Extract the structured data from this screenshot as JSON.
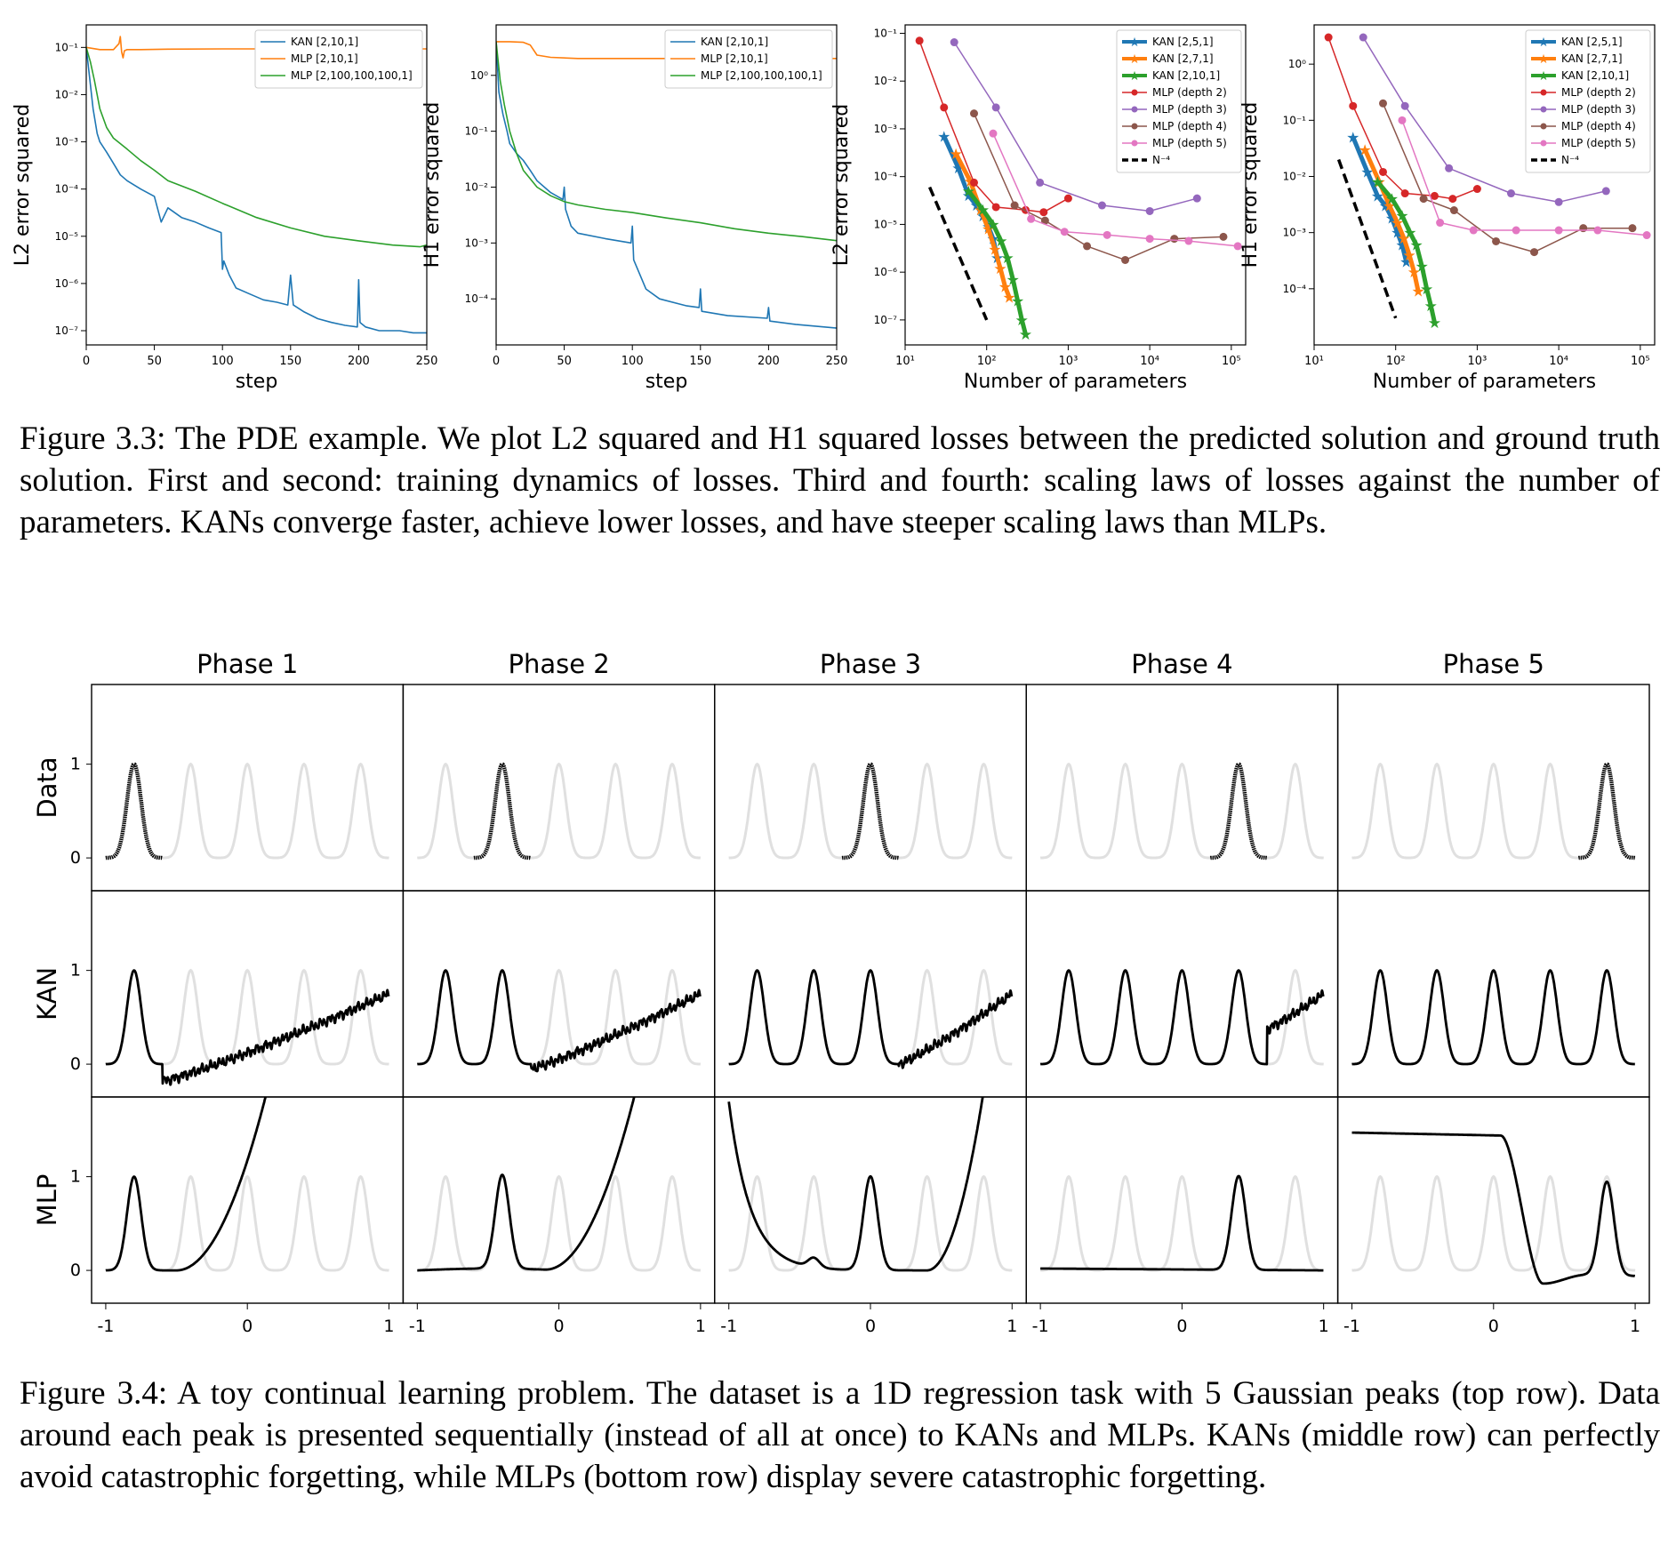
{
  "figure33": {
    "caption": "Figure 3.3: The PDE example. We plot L2 squared and H1 squared losses between the predicted solution and ground truth solution. First and second: training dynamics of losses. Third and fourth: scaling laws of losses against the number of parameters. KANs converge faster, achieve lower losses, and have steeper scaling laws than MLPs."
  },
  "figure34": {
    "caption": "Figure 3.4: A toy continual learning problem. The dataset is a 1D regression task with 5 Gaussian peaks (top row). Data around each peak is presented sequentially (instead of all at once) to KANs and MLPs. KANs (middle row) can perfectly avoid catastrophic forgetting, while MLPs (bottom row) display severe catastrophic forgetting."
  },
  "colors": {
    "blue": "#1f77b4",
    "orange": "#ff7f0e",
    "green": "#2ca02c",
    "red": "#d62728",
    "purple": "#9467bd",
    "brown": "#8c564b",
    "pink": "#e377c2",
    "grey": "#e0e0e0"
  },
  "chart_data": [
    {
      "type": "line",
      "xlabel": "step",
      "ylabel": "L2 error squared",
      "xlim": [
        0,
        250
      ],
      "xticks": [
        0,
        50,
        100,
        150,
        200,
        250
      ],
      "yscale": "log",
      "ylim": [
        5e-08,
        0.3
      ],
      "yticks": [
        {
          "v": 1e-07,
          "label": "10⁻⁷"
        },
        {
          "v": 1e-06,
          "label": "10⁻⁶"
        },
        {
          "v": 1e-05,
          "label": "10⁻⁵"
        },
        {
          "v": 0.0001,
          "label": "10⁻⁴"
        },
        {
          "v": 0.001,
          "label": "10⁻³"
        },
        {
          "v": 0.01,
          "label": "10⁻²"
        },
        {
          "v": 0.1,
          "label": "10⁻¹"
        }
      ],
      "legend_position": "top-right",
      "series": [
        {
          "name": "KAN [2,10,1]",
          "color": "blue",
          "x": [
            0,
            2,
            5,
            8,
            10,
            15,
            20,
            25,
            30,
            40,
            50,
            55,
            60,
            70,
            80,
            90,
            99,
            100,
            101,
            105,
            110,
            120,
            130,
            140,
            148,
            150,
            152,
            160,
            170,
            180,
            190,
            199,
            200,
            201,
            205,
            215,
            230,
            240,
            250
          ],
          "y": [
            0.1,
            0.03,
            0.005,
            0.0015,
            0.001,
            0.0006,
            0.00035,
            0.0002,
            0.00015,
            0.0001,
            7e-05,
            2e-05,
            4e-05,
            2.5e-05,
            2e-05,
            1.5e-05,
            1.2e-05,
            2e-06,
            3e-06,
            1.5e-06,
            8e-07,
            6e-07,
            4.5e-07,
            4e-07,
            3.5e-07,
            1.5e-06,
            3.5e-07,
            2.5e-07,
            1.8e-07,
            1.5e-07,
            1.3e-07,
            1.2e-07,
            1.2e-06,
            1.5e-07,
            1.2e-07,
            1e-07,
            1e-07,
            9e-08,
            9e-08
          ]
        },
        {
          "name": "MLP [2,10,1]",
          "color": "orange",
          "x": [
            0,
            10,
            20,
            24,
            25,
            26,
            27,
            28,
            30,
            40,
            60,
            100,
            150,
            200,
            250
          ],
          "y": [
            0.1,
            0.09,
            0.09,
            0.12,
            0.17,
            0.08,
            0.06,
            0.085,
            0.09,
            0.09,
            0.092,
            0.093,
            0.093,
            0.093,
            0.093
          ]
        },
        {
          "name": "MLP [2,100,100,100,1]",
          "color": "green",
          "x": [
            0,
            3,
            6,
            10,
            15,
            20,
            30,
            40,
            50,
            60,
            80,
            100,
            125,
            150,
            175,
            200,
            225,
            245,
            250
          ],
          "y": [
            0.1,
            0.05,
            0.02,
            0.005,
            0.002,
            0.0012,
            0.0007,
            0.0004,
            0.00025,
            0.00015,
            9e-05,
            5e-05,
            2.5e-05,
            1.5e-05,
            1e-05,
            8e-06,
            6.5e-06,
            6e-06,
            6.5e-06
          ]
        }
      ]
    },
    {
      "type": "line",
      "xlabel": "step",
      "ylabel": "H1 error squared",
      "xlim": [
        0,
        250
      ],
      "xticks": [
        0,
        50,
        100,
        150,
        200,
        250
      ],
      "yscale": "log",
      "ylim": [
        1.5e-05,
        8
      ],
      "yticks": [
        {
          "v": 0.0001,
          "label": "10⁻⁴"
        },
        {
          "v": 0.001,
          "label": "10⁻³"
        },
        {
          "v": 0.01,
          "label": "10⁻²"
        },
        {
          "v": 0.1,
          "label": "10⁻¹"
        },
        {
          "v": 1,
          "label": "10⁰"
        }
      ],
      "legend_position": "top-right",
      "series": [
        {
          "name": "KAN [2,10,1]",
          "color": "blue",
          "x": [
            0,
            2,
            5,
            8,
            10,
            15,
            20,
            25,
            30,
            40,
            49,
            50,
            51,
            55,
            60,
            80,
            99,
            100,
            101,
            110,
            120,
            140,
            149,
            150,
            151,
            170,
            199,
            200,
            201,
            220,
            250
          ],
          "y": [
            4,
            0.5,
            0.2,
            0.1,
            0.06,
            0.04,
            0.03,
            0.02,
            0.013,
            0.008,
            0.006,
            0.01,
            0.004,
            0.002,
            0.0015,
            0.0012,
            0.001,
            0.002,
            0.0005,
            0.00015,
            0.0001,
            7.5e-05,
            7e-05,
            0.00015,
            6e-05,
            5e-05,
            4.5e-05,
            7e-05,
            4e-05,
            3.5e-05,
            3e-05
          ]
        },
        {
          "name": "MLP [2,10,1]",
          "color": "orange",
          "x": [
            0,
            10,
            20,
            25,
            30,
            40,
            60,
            100,
            150,
            200,
            250
          ],
          "y": [
            4,
            4,
            3.9,
            3.5,
            2.3,
            2.1,
            2.0,
            2.0,
            2.0,
            2.0,
            2.0
          ]
        },
        {
          "name": "MLP [2,100,100,100,1]",
          "color": "green",
          "x": [
            0,
            3,
            6,
            10,
            15,
            20,
            30,
            40,
            50,
            60,
            80,
            100,
            125,
            150,
            175,
            200,
            225,
            250
          ],
          "y": [
            4,
            0.8,
            0.3,
            0.1,
            0.04,
            0.02,
            0.01,
            0.007,
            0.0055,
            0.0048,
            0.004,
            0.0035,
            0.0028,
            0.0023,
            0.0018,
            0.0015,
            0.0013,
            0.0011
          ]
        }
      ]
    },
    {
      "type": "line",
      "xlabel": "Number of parameters",
      "ylabel": "L2 error squared",
      "xscale": "log",
      "xlim": [
        10,
        150000
      ],
      "xticks": [
        {
          "v": 10,
          "label": "10¹"
        },
        {
          "v": 100,
          "label": "10²"
        },
        {
          "v": 1000,
          "label": "10³"
        },
        {
          "v": 10000,
          "label": "10⁴"
        },
        {
          "v": 100000,
          "label": "10⁵"
        }
      ],
      "yscale": "log",
      "ylim": [
        3e-08,
        0.15
      ],
      "yticks": [
        {
          "v": 1e-07,
          "label": "10⁻⁷"
        },
        {
          "v": 1e-06,
          "label": "10⁻⁶"
        },
        {
          "v": 1e-05,
          "label": "10⁻⁵"
        },
        {
          "v": 0.0001,
          "label": "10⁻⁴"
        },
        {
          "v": 0.001,
          "label": "10⁻³"
        },
        {
          "v": 0.01,
          "label": "10⁻²"
        },
        {
          "v": 0.1,
          "label": "10⁻¹"
        }
      ],
      "legend_position": "top-right",
      "series": [
        {
          "name": "KAN [2,5,1]",
          "color": "blue",
          "marker": "star",
          "width": 5,
          "x": [
            30,
            45,
            60,
            75,
            90,
            105,
            120,
            135
          ],
          "y": [
            0.0007,
            0.00015,
            4e-05,
            2.5e-05,
            1.5e-05,
            9e-06,
            5e-06,
            2e-06
          ]
        },
        {
          "name": "KAN [2,7,1]",
          "color": "orange",
          "marker": "star",
          "width": 5,
          "x": [
            42,
            63,
            84,
            105,
            126,
            147,
            168,
            189
          ],
          "y": [
            0.0003,
            8e-05,
            2e-05,
            8e-06,
            3e-06,
            1.2e-06,
            5e-07,
            3e-07
          ]
        },
        {
          "name": "KAN [2,10,1]",
          "color": "green",
          "marker": "star",
          "width": 5,
          "x": [
            60,
            90,
            120,
            150,
            180,
            210,
            240,
            270,
            300
          ],
          "y": [
            5e-05,
            2e-05,
            1e-05,
            4.5e-06,
            2e-06,
            7e-07,
            2.5e-07,
            1e-07,
            5e-08
          ]
        },
        {
          "name": "MLP (depth 2)",
          "color": "red",
          "marker": "dot",
          "width": 1.5,
          "x": [
            15,
            30,
            70,
            130,
            300,
            500,
            1000
          ],
          "y": [
            0.07,
            0.0028,
            7.5e-05,
            2.3e-05,
            2e-05,
            1.8e-05,
            3.5e-05
          ]
        },
        {
          "name": "MLP (depth 3)",
          "color": "purple",
          "marker": "dot",
          "width": 1.5,
          "x": [
            40,
            130,
            450,
            2600,
            10000,
            38000
          ],
          "y": [
            0.065,
            0.0028,
            7.5e-05,
            2.5e-05,
            1.9e-05,
            3.5e-05
          ]
        },
        {
          "name": "MLP (depth 4)",
          "color": "brown",
          "marker": "dot",
          "width": 1.5,
          "x": [
            70,
            220,
            520,
            1700,
            5000,
            20000,
            80000
          ],
          "y": [
            0.0021,
            2.5e-05,
            1.2e-05,
            3.5e-06,
            1.8e-06,
            5e-06,
            5.5e-06
          ]
        },
        {
          "name": "MLP (depth 5)",
          "color": "pink",
          "marker": "dot",
          "width": 1.5,
          "x": [
            120,
            350,
            900,
            3000,
            10000,
            30000,
            120000
          ],
          "y": [
            0.0008,
            1.3e-05,
            7e-06,
            6e-06,
            5e-06,
            4.5e-06,
            3.5e-06
          ]
        },
        {
          "name": "N⁻⁴",
          "color": "#000000",
          "dash": true,
          "width": 3.5,
          "x": [
            20,
            100
          ],
          "y": [
            6e-05,
            1e-07
          ]
        }
      ]
    },
    {
      "type": "line",
      "xlabel": "Number of parameters",
      "ylabel": "H1 error squared",
      "xscale": "log",
      "xlim": [
        10,
        150000
      ],
      "xticks": [
        {
          "v": 10,
          "label": "10¹"
        },
        {
          "v": 100,
          "label": "10²"
        },
        {
          "v": 1000,
          "label": "10³"
        },
        {
          "v": 10000,
          "label": "10⁴"
        },
        {
          "v": 100000,
          "label": "10⁵"
        }
      ],
      "yscale": "log",
      "ylim": [
        1e-05,
        5
      ],
      "yticks": [
        {
          "v": 0.0001,
          "label": "10⁻⁴"
        },
        {
          "v": 0.001,
          "label": "10⁻³"
        },
        {
          "v": 0.01,
          "label": "10⁻²"
        },
        {
          "v": 0.1,
          "label": "10⁻¹"
        },
        {
          "v": 1,
          "label": "10⁰"
        }
      ],
      "legend_position": "top-right",
      "series": [
        {
          "name": "KAN [2,5,1]",
          "color": "blue",
          "marker": "star",
          "width": 5,
          "x": [
            30,
            45,
            60,
            75,
            90,
            105,
            120,
            135
          ],
          "y": [
            0.05,
            0.012,
            0.0045,
            0.003,
            0.0018,
            0.001,
            0.0006,
            0.0003
          ]
        },
        {
          "name": "KAN [2,7,1]",
          "color": "orange",
          "marker": "star",
          "width": 5,
          "x": [
            42,
            63,
            84,
            105,
            126,
            147,
            168,
            189
          ],
          "y": [
            0.03,
            0.008,
            0.003,
            0.0015,
            0.0008,
            0.0004,
            0.0002,
            9e-05
          ]
        },
        {
          "name": "KAN [2,10,1]",
          "color": "green",
          "marker": "star",
          "width": 5,
          "x": [
            60,
            90,
            120,
            150,
            180,
            210,
            240,
            270,
            300
          ],
          "y": [
            0.008,
            0.004,
            0.002,
            0.001,
            0.0006,
            0.00025,
            0.0001,
            5e-05,
            2.5e-05
          ]
        },
        {
          "name": "MLP (depth 2)",
          "color": "red",
          "marker": "dot",
          "width": 1.5,
          "x": [
            15,
            30,
            70,
            130,
            300,
            500,
            1000
          ],
          "y": [
            3,
            0.18,
            0.012,
            0.005,
            0.0045,
            0.004,
            0.006
          ]
        },
        {
          "name": "MLP (depth 3)",
          "color": "purple",
          "marker": "dot",
          "width": 1.5,
          "x": [
            40,
            130,
            450,
            2600,
            10000,
            38000
          ],
          "y": [
            3,
            0.18,
            0.014,
            0.005,
            0.0035,
            0.0055
          ]
        },
        {
          "name": "MLP (depth 4)",
          "color": "brown",
          "marker": "dot",
          "width": 1.5,
          "x": [
            70,
            220,
            520,
            1700,
            5000,
            20000,
            80000
          ],
          "y": [
            0.2,
            0.004,
            0.0025,
            0.0007,
            0.00045,
            0.0012,
            0.0012
          ]
        },
        {
          "name": "MLP (depth 5)",
          "color": "pink",
          "marker": "dot",
          "width": 1.5,
          "x": [
            120,
            350,
            900,
            3000,
            10000,
            30000,
            120000
          ],
          "y": [
            0.1,
            0.0015,
            0.0011,
            0.0011,
            0.0011,
            0.0011,
            0.0009
          ]
        },
        {
          "name": "N⁻⁴",
          "color": "#000000",
          "dash": true,
          "width": 3.5,
          "x": [
            20,
            100
          ],
          "y": [
            0.02,
            3e-05
          ]
        }
      ]
    },
    {
      "type": "line",
      "grid_layout": "3 rows x 5 columns",
      "columns": [
        "Phase 1",
        "Phase 2",
        "Phase 3",
        "Phase 4",
        "Phase 5"
      ],
      "rows": [
        "Data",
        "KAN",
        "MLP"
      ],
      "xlim": [
        -1.1,
        1.1
      ],
      "ylim": [
        -0.35,
        1.85
      ],
      "xticks": [
        {
          "v": -1,
          "label": "-1"
        },
        {
          "v": 0,
          "label": "0"
        },
        {
          "v": 1,
          "label": "1"
        }
      ],
      "yticks": [
        {
          "v": 0,
          "label": "0"
        },
        {
          "v": 1,
          "label": "1"
        }
      ],
      "peak_centers": [
        -0.8,
        -0.4,
        0,
        0.4,
        0.8
      ],
      "peak_width": 0.05,
      "background": "grey curve: all 5 Gaussian peaks",
      "data_row": "black dots: peak of current phase over [center-0.2, center+0.2]",
      "kan_row": "black curve: learned peaks 1..phase exactly, then noisy drift to about 0.75 at x=1",
      "mlp_row": {
        "phase1": "peak 1 then shoots above 1.85 near x=-0.42",
        "phase2": "peak 2 then shoots above 1.85 near x=-0.02",
        "phase3": "starts at 1.8 at x=-1, decays to 0, peak 3, shoots above 1.85 near x=0.5",
        "phase4": "nearly flat at 0 with peak 4",
        "phase5": "flat at 1.45 until 0.2, drops to -0.1 at 0.35, then peak 5"
      }
    }
  ]
}
